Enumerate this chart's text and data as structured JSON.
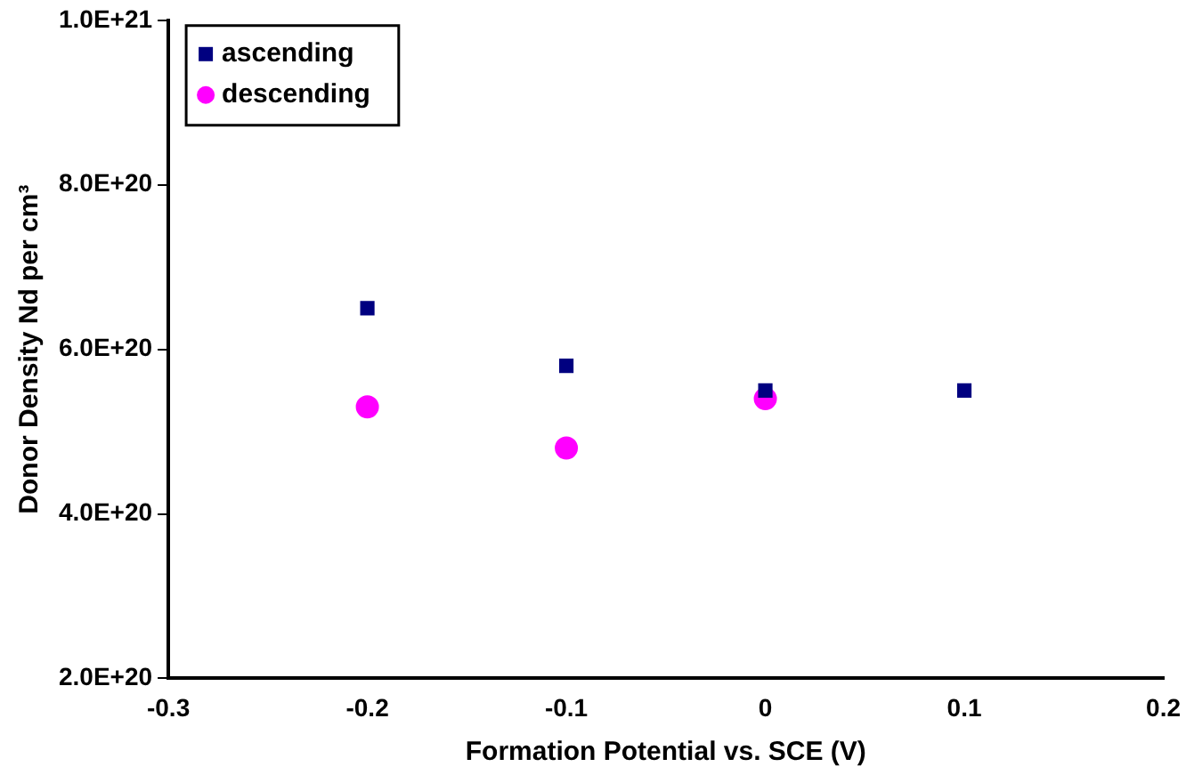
{
  "chart_data": {
    "type": "scatter",
    "xlabel": "Formation Potential vs. SCE (V)",
    "ylabel": "Donor Density Nd per cm³",
    "series": [
      {
        "name": "ascending",
        "color": "#000080",
        "marker": "square",
        "x": [
          -0.2,
          -0.1,
          0,
          0.1
        ],
        "values": [
          6.5e+20,
          5.8e+20,
          5.5e+20,
          5.5e+20
        ]
      },
      {
        "name": "descending",
        "color": "#ff00ff",
        "marker": "circle",
        "x": [
          -0.2,
          -0.1,
          0
        ],
        "values": [
          5.3e+20,
          4.8e+20,
          5.4e+20
        ]
      }
    ],
    "xlim": [
      -0.3,
      0.2
    ],
    "xticks": [
      -0.3,
      -0.2,
      -0.1,
      0,
      0.1,
      0.2
    ],
    "ylim": [
      2e+20,
      1e+21
    ],
    "yticks": [
      {
        "value": 2e+20,
        "label": "2.0E+20"
      },
      {
        "value": 4e+20,
        "label": "4.0E+20"
      },
      {
        "value": 6e+20,
        "label": "6.0E+20"
      },
      {
        "value": 8e+20,
        "label": "8.0E+20"
      },
      {
        "value": 1e+21,
        "label": "1.0E+21"
      }
    ],
    "grid": false,
    "legend": "top left"
  }
}
